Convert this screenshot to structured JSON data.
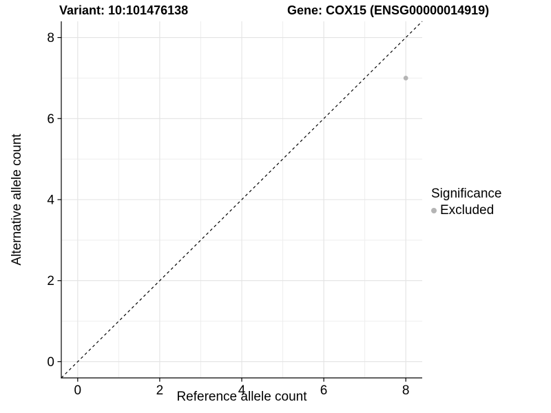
{
  "chart_data": {
    "type": "scatter",
    "titles": {
      "left": "Variant: 10:101476138",
      "right": "Gene: COX15 (ENSG00000014919)"
    },
    "xlabel": "Reference allele count",
    "ylabel": "Alternative allele count",
    "xlim": [
      -0.4,
      8.4
    ],
    "ylim": [
      -0.4,
      8.4
    ],
    "xticks": [
      0,
      2,
      4,
      6,
      8
    ],
    "yticks": [
      0,
      2,
      4,
      6,
      8
    ],
    "xticks_minor": [
      1,
      3,
      5,
      7
    ],
    "yticks_minor": [
      1,
      3,
      5,
      7
    ],
    "grid": true,
    "identity_line": {
      "style": "dashed",
      "color": "#000000"
    },
    "points": [
      {
        "x": 8,
        "y": 7,
        "series": "Excluded"
      }
    ],
    "legend": {
      "title": "Significance",
      "position": "right",
      "items": [
        {
          "label": "Excluded",
          "color": "#b4b4b4"
        }
      ]
    },
    "colors": {
      "excluded_point": "#b4b4b4",
      "grid_major": "#e3e3e3",
      "grid_minor": "#eeeeee",
      "axis_line": "#000000"
    }
  }
}
